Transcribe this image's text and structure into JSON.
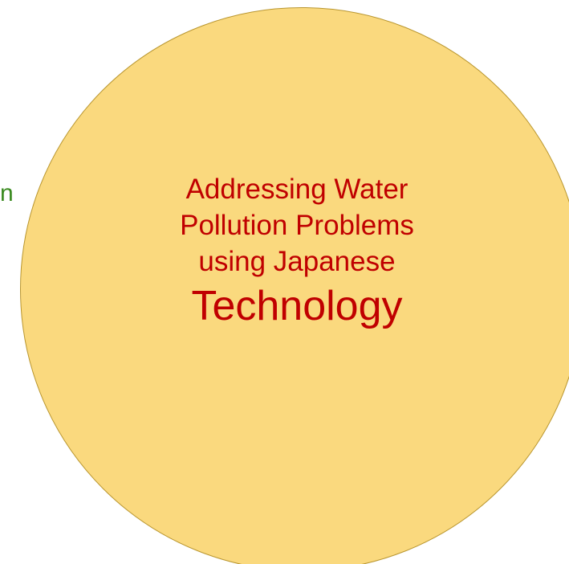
{
  "colors": {
    "circle_fill": "#fad97e",
    "circle_border": "#b9962f",
    "circle_text": "#c00000",
    "stray_text": "#3a8a1f"
  },
  "stray_text": "n",
  "circle": {
    "lines": [
      "Addressing Water",
      "Pollution Problems",
      "using Japanese"
    ],
    "big_line": "Technology"
  }
}
